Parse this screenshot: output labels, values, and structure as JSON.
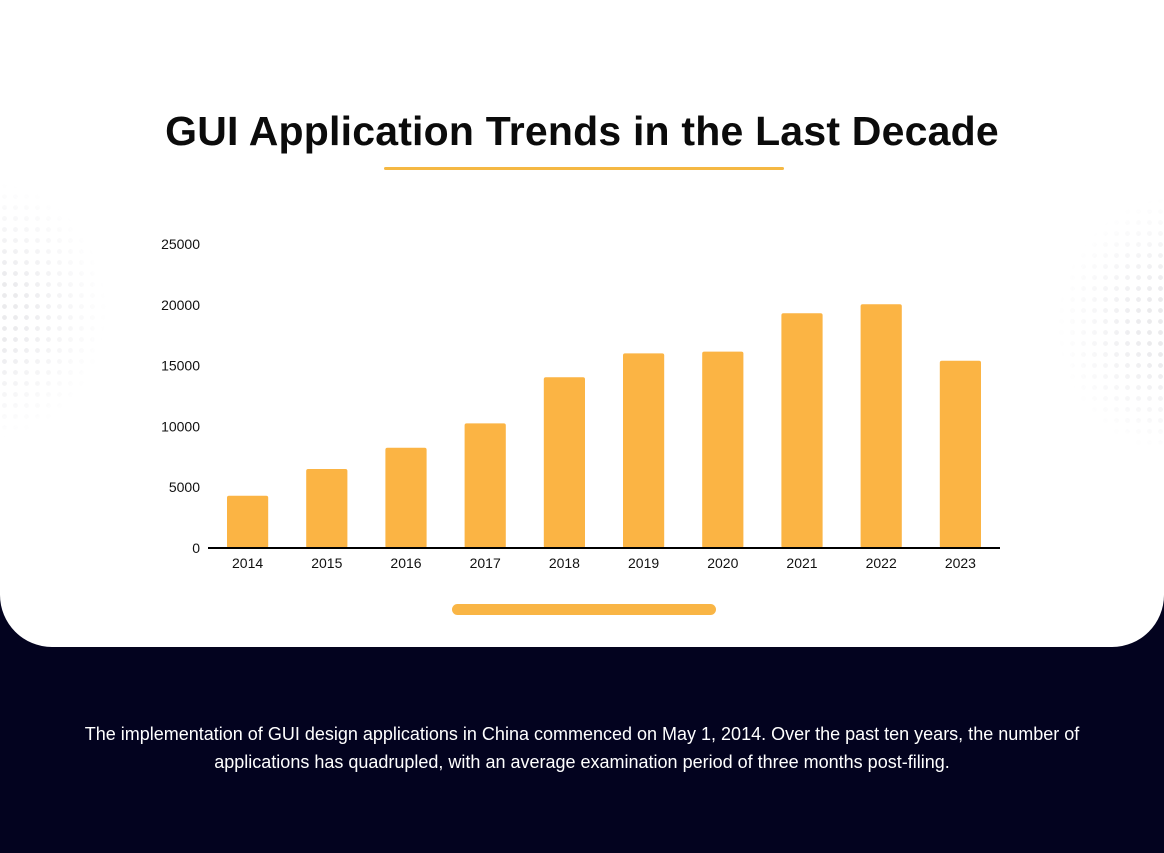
{
  "title": "GUI Application Trends in the Last Decade",
  "caption": "The implementation of GUI design applications in China commenced on May 1, 2014. Over the past ten years, the number of applications has quadrupled, with an average examination period of three months post-filing.",
  "colors": {
    "bar": "#fbb444",
    "accent": "#f5b843",
    "background_dark": "#03031f",
    "card": "#ffffff",
    "axis": "#000000"
  },
  "chart_data": {
    "type": "bar",
    "title": "GUI Application Trends in the Last Decade",
    "xlabel": "",
    "ylabel": "",
    "categories": [
      "2014",
      "2015",
      "2016",
      "2017",
      "2018",
      "2019",
      "2020",
      "2021",
      "2022",
      "2023"
    ],
    "values": [
      4300,
      6500,
      8250,
      10250,
      14050,
      16000,
      16150,
      19300,
      20050,
      15400
    ],
    "ylim": [
      0,
      25000
    ],
    "yticks": [
      0,
      5000,
      10000,
      15000,
      20000,
      25000
    ],
    "grid": false,
    "legend": "none"
  }
}
